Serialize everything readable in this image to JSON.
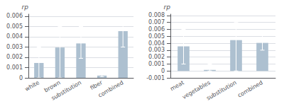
{
  "chart_data": [
    {
      "type": "bar",
      "categories": [
        "white",
        "brown",
        "substitution",
        "fiber",
        "combined"
      ],
      "values": [
        0.00145,
        0.00295,
        0.00335,
        0.00022,
        0.00455
      ],
      "errors_low": [
        0.00145,
        0.00295,
        0.00145,
        0.00012,
        0.00155
      ],
      "errors_high": [
        0.00155,
        0.00205,
        0.00165,
        8e-05,
        0.00055
      ],
      "ylim": [
        0,
        0.0062
      ],
      "yticks": [
        0,
        0.001,
        0.002,
        0.003,
        0.004,
        0.005,
        0.006
      ],
      "ylabel": "rp",
      "color": "#adc0d0",
      "grid": true
    },
    {
      "type": "bar",
      "categories": [
        "meat",
        "vegetables",
        "substitution",
        "combined"
      ],
      "values": [
        0.00355,
        0.00015,
        0.00445,
        0.00405
      ],
      "errors_low": [
        0.00255,
        0.00015,
        0.00445,
        0.00105
      ],
      "errors_high": [
        0.00245,
        0.00085,
        0.00255,
        0.00155
      ],
      "ylim": [
        -0.001,
        0.0082
      ],
      "yticks": [
        -0.001,
        0,
        0.001,
        0.002,
        0.003,
        0.004,
        0.005,
        0.006,
        0.007,
        0.008
      ],
      "ylabel": "rp",
      "color": "#adc0d0",
      "grid": true
    }
  ]
}
